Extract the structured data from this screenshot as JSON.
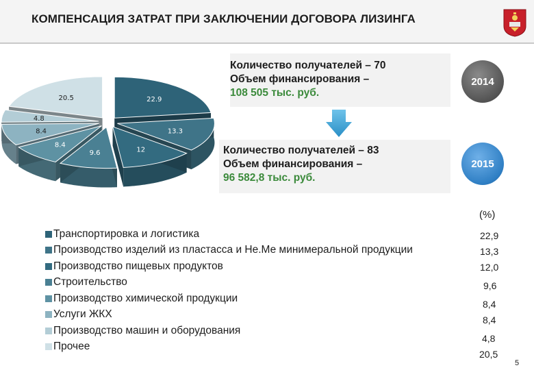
{
  "header": {
    "title": "КОМПЕНСАЦИЯ ЗАТРАТ ПРИ ЗАКЛЮЧЕНИИ ДОГОВОРА ЛИЗИНГА"
  },
  "chart_data": {
    "type": "pie",
    "series": [
      {
        "label": "22.9",
        "value": 22.9,
        "color": "#2e6378"
      },
      {
        "label": "13.3",
        "value": 13.3,
        "color": "#3f7488"
      },
      {
        "label": "12",
        "value": 12.0,
        "color": "#336b80"
      },
      {
        "label": "9.6",
        "value": 9.6,
        "color": "#4a8093"
      },
      {
        "label": "8.4",
        "value": 8.4,
        "color": "#5e92a3"
      },
      {
        "label": "8.4",
        "value": 8.4,
        "color": "#8db3c1"
      },
      {
        "label": "4.8",
        "value": 4.8,
        "color": "#b3cdd6"
      },
      {
        "label": "20.5",
        "value": 20.5,
        "color": "#cfe0e6"
      }
    ]
  },
  "info": {
    "y2014": {
      "recipients": "Количество получателей – 70",
      "funding_label": "Объем финансирования –",
      "funding_value": "108 505 тыс. руб.",
      "year": "2014"
    },
    "y2015": {
      "recipients": "Количество получателей – 83",
      "funding_label": "Объем финансирования –",
      "funding_value": "96 582,8 тыс. руб.",
      "year": "2015"
    }
  },
  "legend": {
    "items": [
      {
        "label": "Транспортировка и логистика",
        "color": "#2e6378"
      },
      {
        "label": "Производство изделий из пластасса и Не.Ме минимеральной продукции",
        "color": "#3f7488"
      },
      {
        "label": "Производство пищевых продуктов",
        "color": "#336b80"
      },
      {
        "label": "Строительство",
        "color": "#4a8093"
      },
      {
        "label": "Производство химической продукции",
        "color": "#5e92a3"
      },
      {
        "label": "Услуги ЖКХ",
        "color": "#8db3c1"
      },
      {
        "label": "Производство машин и оборудования",
        "color": "#b3cdd6"
      },
      {
        "label": "Прочее",
        "color": "#cfe0e6"
      }
    ]
  },
  "percent_header": "(%)",
  "percents": [
    "22,9",
    "13,3",
    "12,0",
    "9,6",
    "8,4",
    "8,4",
    "4,8",
    "20,5"
  ],
  "page_number": "5"
}
